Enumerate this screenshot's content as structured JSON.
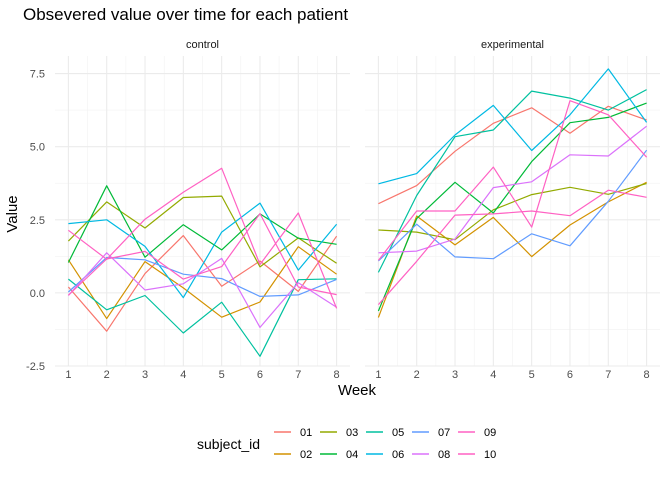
{
  "chart_data": {
    "type": "line",
    "title": "Obsevered value over time for each patient",
    "xlabel": "Week",
    "ylabel": "Value",
    "x": [
      1,
      2,
      3,
      4,
      5,
      6,
      7,
      8
    ],
    "xlim": [
      0.65,
      8.35
    ],
    "ylim": [
      -2.5,
      8.1
    ],
    "yticks": [
      -2.5,
      0.0,
      2.5,
      5.0,
      7.5
    ],
    "ytick_labels": [
      "-2.5",
      "0.0",
      "2.5",
      "5.0",
      "7.5"
    ],
    "xtick_labels": [
      "1",
      "2",
      "3",
      "4",
      "5",
      "6",
      "7",
      "8"
    ],
    "grid": true,
    "legend": {
      "title": "subject_id",
      "position": "bottom"
    },
    "colors": {
      "01": "#F8766D",
      "02": "#D39200",
      "03": "#93AA00",
      "04": "#00BA38",
      "05": "#00C19F",
      "06": "#00B9E3",
      "07": "#619CFF",
      "08": "#DB72FB",
      "09": "#FF61C3",
      "10": "#FF61C3"
    },
    "panels": [
      {
        "strip": "control",
        "series": [
          {
            "name": "01",
            "values": [
              0.2,
              -1.31,
              0.66,
              1.96,
              0.23,
              1.09,
              0.05,
              1.94
            ]
          },
          {
            "name": "02",
            "values": [
              1.13,
              -0.88,
              1.07,
              0.17,
              -0.83,
              -0.31,
              1.58,
              0.64
            ]
          },
          {
            "name": "03",
            "values": [
              1.77,
              3.11,
              2.22,
              3.26,
              3.31,
              0.89,
              1.88,
              1.01
            ]
          },
          {
            "name": "04",
            "values": [
              1.04,
              3.66,
              1.22,
              2.33,
              1.47,
              2.7,
              1.87,
              1.66
            ]
          },
          {
            "name": "05",
            "values": [
              0.47,
              -0.58,
              -0.09,
              -1.37,
              -0.32,
              -2.17,
              0.45,
              0.48
            ]
          },
          {
            "name": "06",
            "values": [
              2.37,
              2.5,
              1.59,
              -0.16,
              2.08,
              3.07,
              0.78,
              2.35
            ]
          },
          {
            "name": "07",
            "values": [
              0.03,
              1.21,
              1.13,
              0.64,
              0.49,
              -0.12,
              -0.07,
              0.46
            ]
          },
          {
            "name": "08",
            "values": [
              -0.09,
              1.37,
              0.1,
              0.31,
              1.18,
              -1.18,
              0.35,
              -0.49
            ]
          },
          {
            "name": "09",
            "values": [
              -0.08,
              1.16,
              1.42,
              0.47,
              0.9,
              2.71,
              0.2,
              -0.06
            ]
          },
          {
            "name": "10",
            "values": [
              2.14,
              1.15,
              2.52,
              3.44,
              4.26,
              0.97,
              2.73,
              -0.53
            ]
          }
        ]
      },
      {
        "strip": "experimental",
        "series": [
          {
            "name": "01",
            "values": [
              3.05,
              3.67,
              4.84,
              5.8,
              6.33,
              5.46,
              6.38,
              5.91
            ]
          },
          {
            "name": "02",
            "values": [
              -0.84,
              2.63,
              1.64,
              2.58,
              1.24,
              2.32,
              3.11,
              3.78
            ]
          },
          {
            "name": "03",
            "values": [
              2.15,
              2.08,
              1.82,
              2.84,
              3.36,
              3.61,
              3.37,
              3.74
            ]
          },
          {
            "name": "04",
            "values": [
              -0.62,
              2.54,
              3.78,
              2.73,
              4.49,
              5.82,
              6.0,
              6.49
            ]
          },
          {
            "name": "05",
            "values": [
              0.7,
              3.33,
              5.34,
              5.57,
              6.9,
              6.66,
              6.25,
              6.95
            ]
          },
          {
            "name": "06",
            "values": [
              3.73,
              4.08,
              5.4,
              6.41,
              4.87,
              6.09,
              7.66,
              5.83
            ]
          },
          {
            "name": "07",
            "values": [
              1.09,
              2.35,
              1.23,
              1.17,
              2.02,
              1.61,
              3.13,
              4.88
            ]
          },
          {
            "name": "08",
            "values": [
              1.37,
              1.43,
              1.84,
              3.6,
              3.8,
              4.72,
              4.68,
              5.7
            ]
          },
          {
            "name": "09",
            "values": [
              -0.4,
              1.08,
              2.66,
              2.7,
              2.8,
              2.64,
              3.51,
              3.27
            ]
          },
          {
            "name": "10",
            "values": [
              1.11,
              2.8,
              2.8,
              4.3,
              2.25,
              6.57,
              6.09,
              4.64
            ]
          }
        ]
      }
    ]
  }
}
